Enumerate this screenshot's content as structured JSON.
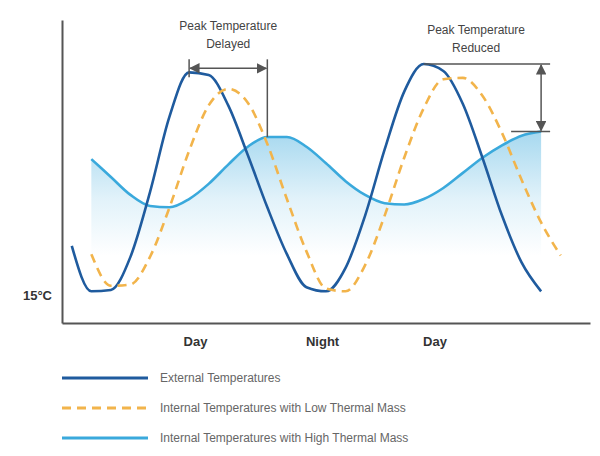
{
  "chart_data": {
    "type": "line",
    "x": [
      1,
      3,
      5,
      7,
      9,
      11,
      13,
      15,
      17,
      19,
      21,
      23,
      25,
      27,
      29,
      31,
      33,
      35,
      37,
      39,
      41,
      43,
      45,
      47,
      49,
      51
    ],
    "xlim": [
      0,
      54
    ],
    "xticks": [
      {
        "value": 13.6,
        "label": "Day"
      },
      {
        "value": 26.6,
        "label": "Night"
      },
      {
        "value": 38.1,
        "label": "Day"
      }
    ],
    "ylim": [
      13,
      35
    ],
    "yticks": [
      {
        "value": 15,
        "label": "15°C"
      }
    ],
    "grid": false,
    "legend": "bottom",
    "annotations": [
      "Peak Temperature Delayed",
      "Peak Temperature Reduced"
    ],
    "series": [
      {
        "name": "External Temperatures",
        "color": "#1f5b9e",
        "line_style": "solid",
        "values": [
          18.6,
          15.3,
          15.4,
          17.8,
          22.5,
          28,
          31.2,
          31,
          28.8,
          25.2,
          21.4,
          18,
          15.6,
          15.3,
          17,
          20.8,
          25.6,
          29.8,
          31.8,
          31.3,
          28.9,
          25,
          20.8,
          17.4,
          15.3,
          null
        ]
      },
      {
        "name": "Internal Temperatures with Low Thermal Mass",
        "color": "#f2b44b",
        "line_style": "dashed",
        "values": [
          null,
          18,
          15.7,
          15.8,
          17.8,
          21.4,
          25.5,
          28.8,
          30,
          29,
          26,
          22,
          18.2,
          15.5,
          15.3,
          17.2,
          20.8,
          25,
          28.6,
          30.7,
          30.8,
          29.5,
          26.8,
          23.4,
          20.3,
          17.9
        ]
      },
      {
        "name": "Internal Temperatures with High Thermal Mass",
        "color": "#3aa9dc",
        "line_style": "solid",
        "type": "area",
        "values": [
          null,
          24.9,
          23.6,
          22.3,
          21.5,
          21.4,
          22,
          23.1,
          24.5,
          25.8,
          26.5,
          26.5,
          25.8,
          24.6,
          23.3,
          22.3,
          21.7,
          21.6,
          22,
          22.8,
          23.9,
          25,
          25.9,
          26.6,
          26.9,
          null
        ]
      }
    ]
  }
}
